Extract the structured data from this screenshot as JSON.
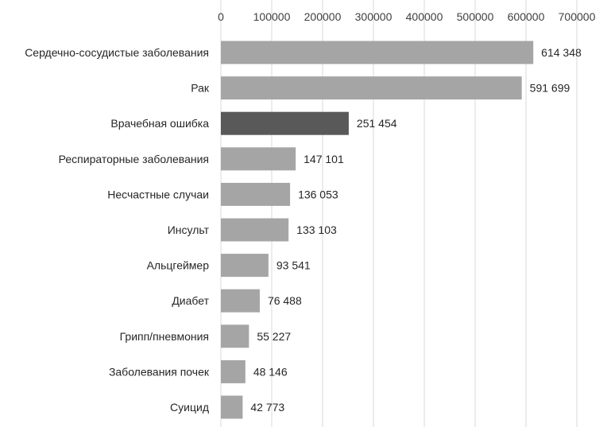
{
  "chart_data": {
    "type": "bar",
    "orientation": "horizontal",
    "x_axis_position": "top",
    "xlim": [
      0,
      700000
    ],
    "x_ticks": [
      0,
      100000,
      200000,
      300000,
      400000,
      500000,
      600000,
      700000
    ],
    "x_tick_labels": [
      "0",
      "100000",
      "200000",
      "300000",
      "400000",
      "500000",
      "600000",
      "700000"
    ],
    "grid": true,
    "categories": [
      "Сердечно-сосудистые заболевания",
      "Рак",
      "Врачебная ошибка",
      "Респираторные заболевания",
      "Несчастные случаи",
      "Инсульт",
      "Альцгеймер",
      "Диабет",
      "Грипп/пневмония",
      "Заболевания почек",
      "Суицид"
    ],
    "values": [
      614348,
      591699,
      251454,
      147101,
      136053,
      133103,
      93541,
      76488,
      55227,
      48146,
      42773
    ],
    "data_labels": [
      "614 348",
      "591 699",
      "251 454",
      "147 101",
      "136 053",
      "133 103",
      "93 541",
      "76 488",
      "55 227",
      "48 146",
      "42 773"
    ],
    "highlight_index": 2,
    "colors": {
      "bar": "#a5a5a5",
      "highlight": "#595959",
      "grid": "#d9d9d9"
    }
  }
}
